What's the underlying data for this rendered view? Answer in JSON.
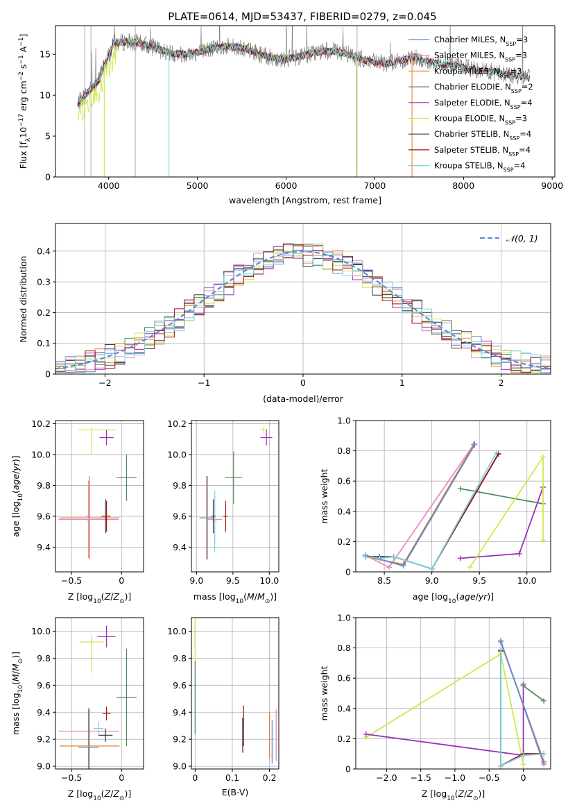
{
  "figure": {
    "title": "PLATE=0614, MJD=53437, FIBERID=0279, z=0.045"
  },
  "colors": {
    "grid": "#b0b0b0",
    "Chabrier MILES": "#5b8ad8",
    "Salpeter MILES": "#e88ac4",
    "Kroupa MILES": "#e8822c",
    "Chabrier ELODIE": "#4f8a5b",
    "Salpeter ELODIE": "#9b2fb5",
    "Kroupa ELODIE": "#cfe84a",
    "Chabrier STELIB": "#3a3a3a",
    "Salpeter STELIB": "#a01414",
    "Kroupa STELIB": "#76d8e0",
    "data": "#808080",
    "gaussian": "#5b8ad8"
  },
  "chart_data": [
    {
      "id": "spectrum",
      "type": "line",
      "title": "",
      "xlabel": "wavelength [Angstrom, rest frame]",
      "ylabel": "Flux [f_λ10^-17 erg cm^-2 s^-1 A^-1]",
      "xlim": [
        3400,
        9030
      ],
      "ylim": [
        0,
        18.5
      ],
      "xticks": [
        4000,
        5000,
        6000,
        7000,
        8000,
        9000
      ],
      "yticks": [
        0,
        5,
        10,
        15
      ],
      "grid": false,
      "legend_position": "right",
      "series": [
        {
          "name": "Chabrier MILES, N_SSP=3",
          "color_key": "Chabrier MILES",
          "x_range": [
            3650,
            7420
          ]
        },
        {
          "name": "Salpeter MILES, N_SSP=3",
          "color_key": "Salpeter MILES",
          "x_range": [
            3650,
            7420
          ]
        },
        {
          "name": "Kroupa MILES, N_SSP=3",
          "color_key": "Kroupa MILES",
          "x_range": [
            3650,
            7420
          ]
        },
        {
          "name": "Chabrier ELODIE, N_SSP=2",
          "color_key": "Chabrier ELODIE",
          "x_range": [
            3650,
            6790
          ]
        },
        {
          "name": "Salpeter ELODIE, N_SSP=4",
          "color_key": "Salpeter ELODIE",
          "x_range": [
            3650,
            6790
          ]
        },
        {
          "name": "Kroupa ELODIE, N_SSP=3",
          "color_key": "Kroupa ELODIE",
          "x_range": [
            3650,
            6790
          ]
        },
        {
          "name": "Chabrier STELIB, N_SSP=4",
          "color_key": "Chabrier STELIB",
          "x_range": [
            3650,
            8750
          ]
        },
        {
          "name": "Salpeter STELIB, N_SSP=4",
          "color_key": "Salpeter STELIB",
          "x_range": [
            3650,
            8750
          ]
        },
        {
          "name": "Kroupa STELIB, N_SSP=4",
          "color_key": "Kroupa STELIB",
          "x_range": [
            3650,
            8750
          ]
        }
      ]
    },
    {
      "id": "residuals",
      "type": "line",
      "title": "",
      "xlabel": "(data-model)/error",
      "ylabel": "Normed distribution",
      "xlim": [
        -2.5,
        2.5
      ],
      "ylim": [
        0,
        0.49
      ],
      "xticks": [
        -2,
        -1,
        0,
        1,
        2
      ],
      "yticks": [
        0.0,
        0.1,
        0.2,
        0.3,
        0.4
      ],
      "grid": true,
      "legend_position": "top-right",
      "gaussian_label": "𝒩(0, 1)",
      "bin_width": 0.1
    },
    {
      "id": "age-vs-z",
      "type": "scatter",
      "xlabel": "Z [log10(Z/Z⊙)]",
      "ylabel": "age  [log10(age/yr)]",
      "xlim": [
        -0.66,
        0.22
      ],
      "ylim": [
        9.24,
        10.22
      ],
      "xticks": [
        -0.5,
        0.0
      ],
      "yticks": [
        9.4,
        9.6,
        9.8,
        10.0,
        10.2
      ],
      "grid": true,
      "crosses": [
        {
          "model": "Kroupa ELODIE",
          "x": -0.3,
          "y": 10.16,
          "xerr": 0.13,
          "yerr": 0.02,
          "xerr_right": 0.25,
          "yerr_down": 0.16
        },
        {
          "model": "Salpeter ELODIE",
          "x": -0.15,
          "y": 10.11,
          "xerr": 0.07,
          "yerr": 0.05
        },
        {
          "model": "Chabrier ELODIE",
          "x": 0.05,
          "y": 9.85,
          "xerr": 0.1,
          "yerr": 0.15
        },
        {
          "model": "Chabrier MILES",
          "x": -0.33,
          "y": 9.6,
          "xerr": 0.02,
          "yerr": 0.23
        },
        {
          "model": "Kroupa STELIB",
          "x": -0.33,
          "y": 9.57,
          "xerr": 0.02,
          "yerr": 0.2
        },
        {
          "model": "Kroupa MILES",
          "x": -0.32,
          "y": 9.59,
          "xerr": 0.3,
          "yerr": 0.27
        },
        {
          "model": "Salpeter MILES",
          "x": -0.33,
          "y": 9.58,
          "xerr": 0.3,
          "yerr": 0.25
        },
        {
          "model": "Chabrier STELIB",
          "x": -0.16,
          "y": 9.6,
          "xerr": 0.04,
          "yerr": 0.11
        },
        {
          "model": "Salpeter STELIB",
          "x": -0.15,
          "y": 9.6,
          "xerr": 0.04,
          "yerr": 0.1
        }
      ]
    },
    {
      "id": "age-vs-mass",
      "type": "scatter",
      "xlabel": "mass [log10(M/M⊙)]",
      "ylabel": "",
      "xlim": [
        8.93,
        10.13
      ],
      "ylim": [
        9.24,
        10.22
      ],
      "xticks": [
        9.0,
        9.5,
        10.0
      ],
      "yticks": [
        9.4,
        9.6,
        9.8,
        10.0,
        10.2
      ],
      "grid": true,
      "crosses": [
        {
          "model": "Kroupa ELODIE",
          "x": 9.92,
          "y": 10.16,
          "xerr": 0.05,
          "yerr": 0.02
        },
        {
          "model": "Salpeter ELODIE",
          "x": 9.96,
          "y": 10.11,
          "xerr": 0.08,
          "yerr": 0.05
        },
        {
          "model": "Chabrier ELODIE",
          "x": 9.51,
          "y": 9.85,
          "xerr": 0.12,
          "yerr": 0.17
        },
        {
          "model": "Kroupa MILES",
          "x": 9.15,
          "y": 9.59,
          "xerr": 0.1,
          "yerr": 0.27
        },
        {
          "model": "Salpeter MILES",
          "x": 9.25,
          "y": 9.58,
          "xerr": 0.1,
          "yerr": 0.15
        },
        {
          "model": "Chabrier MILES",
          "x": 9.14,
          "y": 9.59,
          "xerr": 0.1,
          "yerr": 0.27
        },
        {
          "model": "Kroupa STELIB",
          "x": 9.25,
          "y": 9.57,
          "xerr": 0.03,
          "yerr": 0.2
        },
        {
          "model": "Chabrier STELIB",
          "x": 9.23,
          "y": 9.6,
          "xerr": 0.03,
          "yerr": 0.11
        },
        {
          "model": "Salpeter STELIB",
          "x": 9.4,
          "y": 9.6,
          "xerr": 0.03,
          "yerr": 0.1
        }
      ]
    },
    {
      "id": "weight-vs-age",
      "type": "line",
      "xlabel": "age  [log10(age/yr)]",
      "ylabel": "mass weight",
      "xlim": [
        8.2,
        10.25
      ],
      "ylim": [
        0.0,
        1.0
      ],
      "xticks": [
        8.5,
        9.0,
        9.5,
        10.0
      ],
      "yticks": [
        0.0,
        0.2,
        0.4,
        0.6,
        0.8,
        1.0
      ],
      "grid": true,
      "series": [
        {
          "model": "Salpeter MILES",
          "points": [
            [
              8.3,
              0.11
            ],
            [
              8.55,
              0.03
            ],
            [
              9.45,
              0.85
            ]
          ]
        },
        {
          "model": "Kroupa MILES",
          "points": [
            [
              8.3,
              0.1
            ],
            [
              8.7,
              0.05
            ],
            [
              9.44,
              0.84
            ]
          ]
        },
        {
          "model": "Chabrier MILES",
          "points": [
            [
              8.3,
              0.11
            ],
            [
              8.7,
              0.04
            ],
            [
              9.45,
              0.84
            ]
          ]
        },
        {
          "model": "Chabrier ELODIE",
          "points": [
            [
              9.3,
              0.55
            ],
            [
              10.17,
              0.45
            ]
          ]
        },
        {
          "model": "Salpeter ELODIE",
          "points": [
            [
              9.3,
              0.09
            ],
            [
              9.92,
              0.12
            ],
            [
              10.17,
              0.56
            ]
          ]
        },
        {
          "model": "Kroupa ELODIE",
          "points": [
            [
              9.4,
              0.03
            ],
            [
              10.17,
              0.76
            ],
            [
              10.17,
              0.21
            ]
          ]
        },
        {
          "model": "Chabrier STELIB",
          "points": [
            [
              8.3,
              0.1
            ],
            [
              8.45,
              0.1
            ],
            [
              8.6,
              0.1
            ],
            [
              9.0,
              0.02
            ],
            [
              9.7,
              0.78
            ]
          ]
        },
        {
          "model": "Salpeter STELIB",
          "points": [
            [
              8.3,
              0.1
            ],
            [
              8.45,
              0.09
            ],
            [
              8.6,
              0.1
            ],
            [
              9.0,
              0.02
            ],
            [
              9.7,
              0.78
            ]
          ]
        },
        {
          "model": "Kroupa STELIB",
          "points": [
            [
              8.3,
              0.1
            ],
            [
              8.45,
              0.09
            ],
            [
              8.6,
              0.1
            ],
            [
              9.0,
              0.02
            ],
            [
              9.68,
              0.79
            ]
          ]
        }
      ]
    },
    {
      "id": "mass-vs-z",
      "type": "scatter",
      "xlabel": "Z [log10(Z/Z⊙)]",
      "ylabel": "mass [log10(M/M⊙)]",
      "xlim": [
        -0.66,
        0.22
      ],
      "ylim": [
        8.98,
        10.1
      ],
      "xticks": [
        -0.5,
        0.0
      ],
      "yticks": [
        9.0,
        9.2,
        9.4,
        9.6,
        9.8,
        10.0
      ],
      "grid": true,
      "crosses": [
        {
          "model": "Salpeter ELODIE",
          "x": -0.15,
          "y": 9.96,
          "xerr": 0.09,
          "yerr": 0.08
        },
        {
          "model": "Kroupa ELODIE",
          "x": -0.3,
          "y": 9.92,
          "xerr": 0.12,
          "yerr": 0.05,
          "yerr_down": 0.23
        },
        {
          "model": "Chabrier ELODIE",
          "x": 0.05,
          "y": 9.51,
          "xerr": 0.1,
          "yerr": 0.36
        },
        {
          "model": "Salpeter STELIB",
          "x": -0.15,
          "y": 9.39,
          "xerr": 0.04,
          "yerr": 0.05
        },
        {
          "model": "Kroupa STELIB",
          "x": -0.23,
          "y": 9.28,
          "xerr": 0.05,
          "yerr": 0.05
        },
        {
          "model": "Salpeter MILES",
          "x": -0.33,
          "y": 9.26,
          "xerr": 0.3,
          "yerr": 0.17
        },
        {
          "model": "Chabrier STELIB",
          "x": -0.16,
          "y": 9.23,
          "xerr": 0.07,
          "yerr": 0.05
        },
        {
          "model": "Chabrier MILES",
          "x": -0.33,
          "y": 9.14,
          "xerr": 0.1,
          "yerr": 0.28
        },
        {
          "model": "Kroupa MILES",
          "x": -0.32,
          "y": 9.15,
          "xerr": 0.3,
          "yerr": 0.28
        }
      ]
    },
    {
      "id": "mass-vs-ebv",
      "type": "scatter",
      "xlabel": "E(B-V)",
      "ylabel": "",
      "xlim": [
        -0.01,
        0.225
      ],
      "ylim": [
        8.98,
        10.1
      ],
      "xticks": [
        0.0,
        0.1,
        0.2
      ],
      "yticks": [
        9.0,
        9.2,
        9.4,
        9.6,
        9.8,
        10.0
      ],
      "grid": true,
      "bars": [
        {
          "model": "Salpeter ELODIE",
          "x": 0.0,
          "y": 9.96,
          "yerr": 0.08
        },
        {
          "model": "Kroupa ELODIE",
          "x": 0.0,
          "y": 9.92,
          "yerr": 0.2
        },
        {
          "model": "Chabrier ELODIE",
          "x": 0.0,
          "y": 9.51,
          "yerr": 0.27
        },
        {
          "model": "Salpeter STELIB",
          "x": 0.13,
          "y": 9.3,
          "yerr": 0.15
        },
        {
          "model": "Kroupa STELIB",
          "x": 0.128,
          "y": 9.2,
          "yerr": 0.07
        },
        {
          "model": "Chabrier STELIB",
          "x": 0.128,
          "y": 9.23,
          "yerr": 0.13
        },
        {
          "model": "Kroupa MILES",
          "x": 0.2,
          "y": 9.23,
          "yerr": 0.17
        },
        {
          "model": "Chabrier MILES",
          "x": 0.207,
          "y": 9.18,
          "yerr": 0.16
        },
        {
          "model": "Salpeter MILES",
          "x": 0.218,
          "y": 9.23,
          "yerr": 0.19
        }
      ]
    },
    {
      "id": "weight-vs-z",
      "type": "line",
      "xlabel": "Z [log10(Z/Z⊙)]",
      "ylabel": "mass weight",
      "xlim": [
        -2.45,
        0.4
      ],
      "ylim": [
        0.0,
        1.0
      ],
      "xticks": [
        -2.0,
        -1.5,
        -1.0,
        -0.5,
        0.0
      ],
      "yticks": [
        0.0,
        0.2,
        0.4,
        0.6,
        0.8,
        1.0
      ],
      "grid": true,
      "series": [
        {
          "model": "Kroupa ELODIE",
          "points": [
            [
              -2.3,
              0.21
            ],
            [
              -0.33,
              0.76
            ],
            [
              0.0,
              0.03
            ]
          ]
        },
        {
          "model": "Salpeter ELODIE",
          "points": [
            [
              -2.3,
              0.23
            ],
            [
              0.0,
              0.09
            ],
            [
              0.0,
              0.56
            ]
          ]
        },
        {
          "model": "Chabrier ELODIE",
          "points": [
            [
              0.0,
              0.55
            ],
            [
              0.3,
              0.45
            ]
          ]
        },
        {
          "model": "Salpeter MILES",
          "points": [
            [
              -0.33,
              0.85
            ],
            [
              0.3,
              0.03
            ]
          ]
        },
        {
          "model": "Kroupa MILES",
          "points": [
            [
              -0.33,
              0.84
            ],
            [
              0.3,
              0.05
            ]
          ]
        },
        {
          "model": "Chabrier MILES",
          "points": [
            [
              -0.33,
              0.84
            ],
            [
              0.3,
              0.04
            ]
          ]
        },
        {
          "model": "Chabrier STELIB",
          "points": [
            [
              -0.33,
              0.78
            ],
            [
              -0.33,
              0.02
            ],
            [
              0.0,
              0.1
            ],
            [
              0.3,
              0.1
            ]
          ]
        },
        {
          "model": "Salpeter STELIB",
          "points": [
            [
              -0.33,
              0.78
            ],
            [
              -0.33,
              0.02
            ],
            [
              0.0,
              0.1
            ],
            [
              0.3,
              0.1
            ]
          ]
        },
        {
          "model": "Kroupa STELIB",
          "points": [
            [
              -0.33,
              0.79
            ],
            [
              -0.33,
              0.02
            ],
            [
              0.0,
              0.09
            ],
            [
              0.3,
              0.1
            ]
          ]
        }
      ]
    }
  ]
}
